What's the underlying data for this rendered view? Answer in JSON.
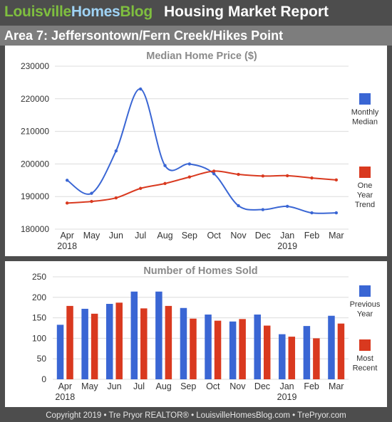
{
  "header": {
    "brand_part1": "Louisville",
    "brand_part2": "Homes",
    "brand_part3": "Blog",
    "title": "Housing Market Report"
  },
  "area_title": "Area 7: Jeffersontown/Fern Creek/Hikes Point",
  "footer": "Copyright 2019 • Tre Pryor REALTOR® • LouisvilleHomesBlog.com • TrePryor.com",
  "colors": {
    "blue": "#3a66d4",
    "red": "#d9391f",
    "brand_green": "#7fbf3f",
    "brand_blue": "#9fd3f5"
  },
  "chart_data": [
    {
      "type": "line",
      "title": "Median Home Price ($)",
      "categories": [
        "Apr",
        "May",
        "Jun",
        "Jul",
        "Aug",
        "Sep",
        "Oct",
        "Nov",
        "Dec",
        "Jan",
        "Feb",
        "Mar"
      ],
      "year_labels": [
        {
          "category": "Apr",
          "label": "2018"
        },
        {
          "category": "Jan",
          "label": "2019"
        }
      ],
      "ylim": [
        180000,
        230000
      ],
      "yticks": [
        180000,
        190000,
        200000,
        210000,
        220000,
        230000
      ],
      "grid": true,
      "legend_position": "right",
      "series": [
        {
          "name": "Monthly Median",
          "legend": [
            "Monthly",
            "Median"
          ],
          "color": "#3a66d4",
          "values": [
            195000,
            191000,
            204000,
            223000,
            199500,
            200000,
            197000,
            187200,
            186000,
            187000,
            185000,
            185000
          ]
        },
        {
          "name": "One Year Trend",
          "legend": [
            "One",
            "Year",
            "Trend"
          ],
          "color": "#d9391f",
          "values": [
            188000,
            188500,
            189600,
            192500,
            194000,
            196000,
            197800,
            196800,
            196300,
            196400,
            195700,
            195100
          ]
        }
      ]
    },
    {
      "type": "bar",
      "title": "Number of Homes Sold",
      "categories": [
        "Apr",
        "May",
        "Jun",
        "Jul",
        "Aug",
        "Sep",
        "Oct",
        "Nov",
        "Dec",
        "Jan",
        "Feb",
        "Mar"
      ],
      "year_labels": [
        {
          "category": "Apr",
          "label": "2018"
        },
        {
          "category": "Jan",
          "label": "2019"
        }
      ],
      "ylim": [
        0,
        250
      ],
      "yticks": [
        0,
        50,
        100,
        150,
        200,
        250
      ],
      "grid": true,
      "legend_position": "right",
      "series": [
        {
          "name": "Previous Year",
          "legend": [
            "Previous",
            "Year"
          ],
          "color": "#3a66d4",
          "values": [
            133,
            172,
            184,
            214,
            214,
            174,
            158,
            141,
            158,
            110,
            130,
            155
          ]
        },
        {
          "name": "Most Recent",
          "legend": [
            "Most",
            "Recent"
          ],
          "color": "#d9391f",
          "values": [
            179,
            160,
            187,
            173,
            179,
            148,
            143,
            147,
            131,
            104,
            100,
            136
          ]
        }
      ]
    }
  ]
}
